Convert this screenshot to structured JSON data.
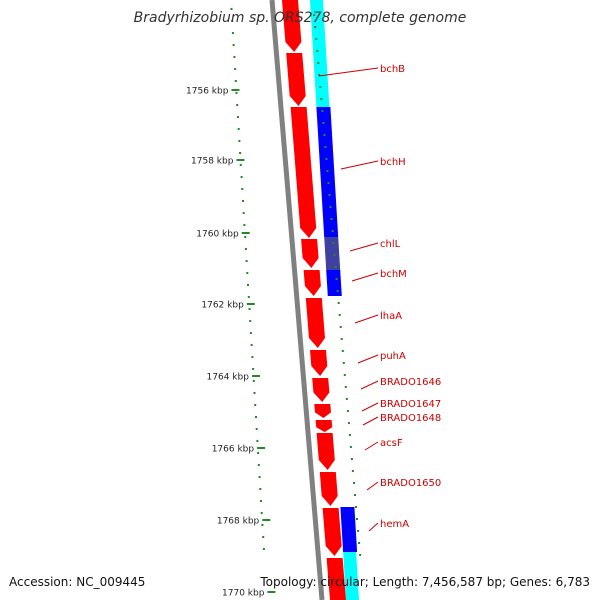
{
  "title": "Bradyrhizobium sp. ORS278, complete genome",
  "accession": "Accession: NC_009445",
  "topology": "Topology: circular; Length: 7,456,587 bp; Genes: 6,783",
  "ticks": [
    "1756 kbp",
    "1758 kbp",
    "1760 kbp",
    "1762 kbp",
    "1764 kbp",
    "1766 kbp",
    "1768 kbp",
    "1770 kbp"
  ],
  "genes": [
    "bchB",
    "bchH",
    "chlL",
    "bchM",
    "lhaA",
    "puhA",
    "BRADO1646",
    "BRADO1647",
    "BRADO1648",
    "acsF",
    "BRADO1650",
    "hemA"
  ],
  "colors": {
    "gene_red": "#ff0000",
    "blue": "#0000ff",
    "cyan": "#00ffff",
    "navy": "#4040a0",
    "tick_green": "#228b22",
    "backbone": "#808080",
    "label_red": "#cc0000"
  }
}
